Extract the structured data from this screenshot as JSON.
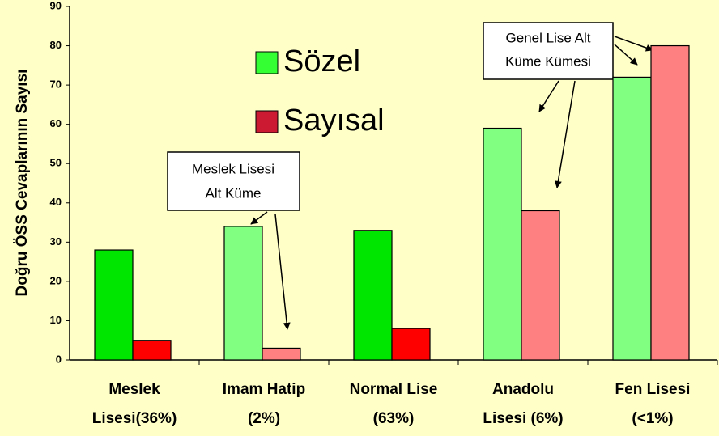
{
  "chart_data": {
    "type": "bar",
    "ylabel": "Doğru ÖSS Cevaplarının Sayısı",
    "categories": [
      [
        "Meslek",
        "Lisesi(36%)"
      ],
      [
        "Imam Hatip",
        "(2%)"
      ],
      [
        "Normal Lise",
        "(63%)"
      ],
      [
        "Anadolu",
        "Lisesi (6%)"
      ],
      [
        "Fen Lisesi",
        "(<1%)"
      ]
    ],
    "series": [
      {
        "name": "Sözel",
        "color": "#33ff33",
        "colors": [
          "#00e600",
          "#80ff80",
          "#00e600",
          "#80ff80",
          "#80ff80"
        ],
        "values": [
          28,
          34,
          33,
          59,
          72
        ]
      },
      {
        "name": "Sayısal",
        "color": "#cc1a33",
        "colors": [
          "#ff0000",
          "#ff8080",
          "#ff0000",
          "#ff8080",
          "#ff8080"
        ],
        "values": [
          5,
          3,
          8,
          38,
          80
        ]
      }
    ],
    "ylim": [
      0,
      90
    ],
    "yticks": [
      0,
      10,
      20,
      30,
      40,
      50,
      60,
      70,
      80,
      90
    ],
    "annotations": [
      [
        "Meslek Lisesi",
        "Alt Küme"
      ],
      [
        "Genel Lise Alt",
        "Küme Kümesi"
      ]
    ]
  }
}
